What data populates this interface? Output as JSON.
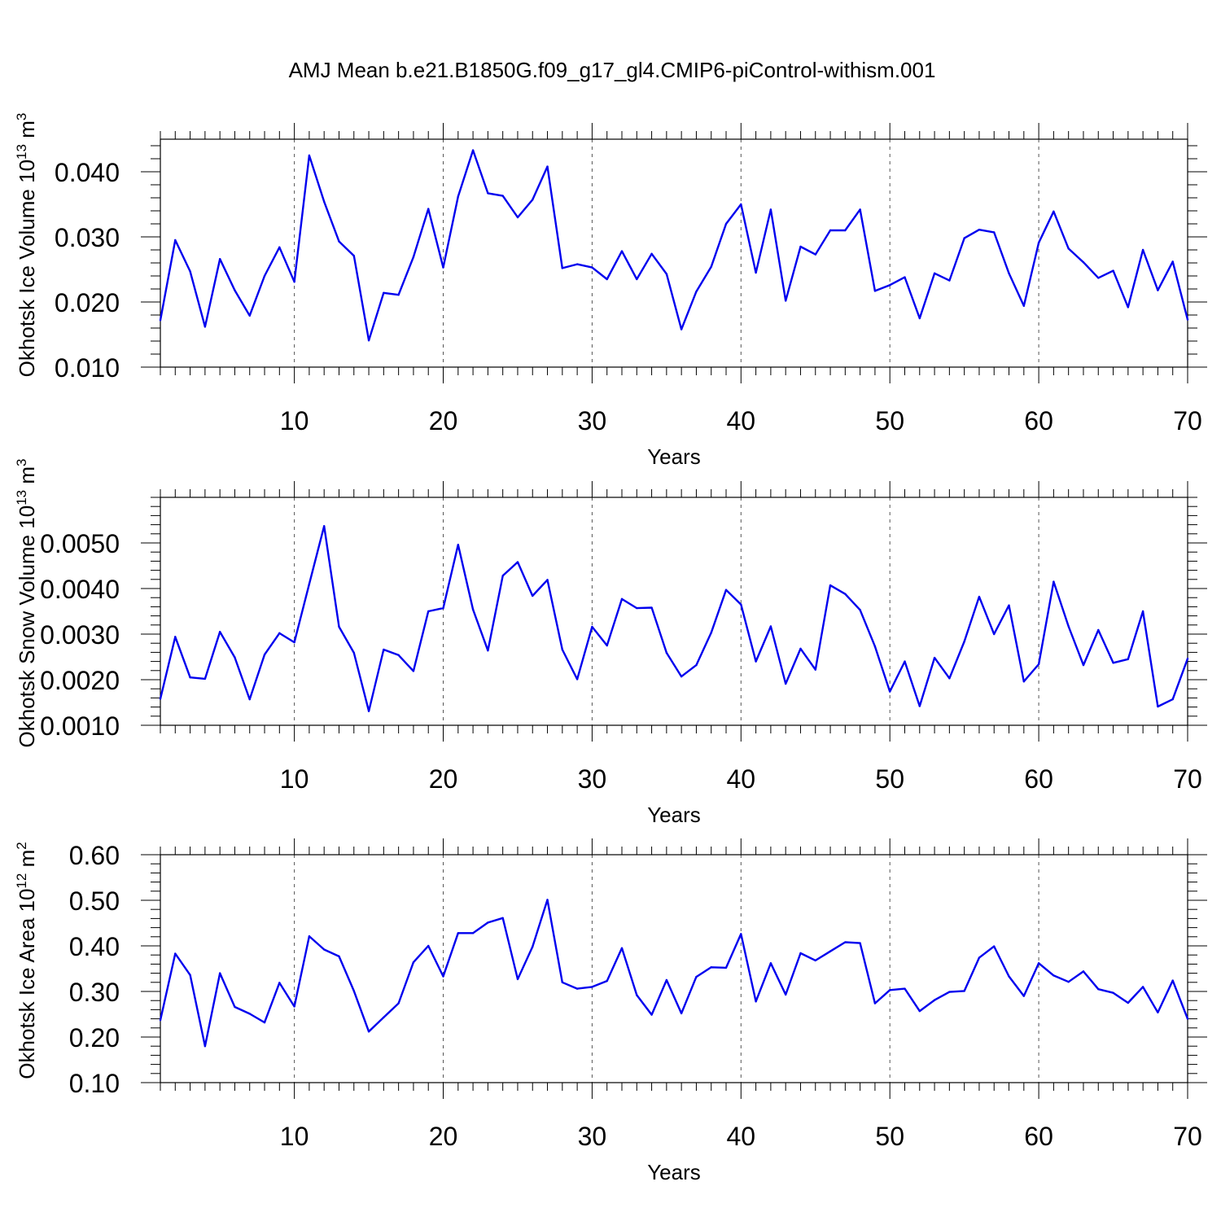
{
  "figure": {
    "title": "AMJ Mean b.e21.B1850G.f09_g17_gl4.CMIP6-piControl-withism.001"
  },
  "colors": {
    "line": "#0000ee",
    "axis": "#000000",
    "grid": "#555555"
  },
  "chart_data": [
    {
      "type": "line",
      "ylabel": {
        "main": "Okhotsk Ice Volume 10",
        "sup": "13",
        "unit": " m",
        "unitsup": "3"
      },
      "xlabel": "Years",
      "xlim": [
        1,
        70
      ],
      "ylim": [
        0.01,
        0.045
      ],
      "yticks": [
        0.01,
        0.02,
        0.03,
        0.04
      ],
      "ytick_labels": [
        "0.010",
        "0.020",
        "0.030",
        "0.040"
      ],
      "xticks": [
        10,
        20,
        30,
        40,
        50,
        60,
        70
      ],
      "xtick_labels": [
        "10",
        "20",
        "30",
        "40",
        "50",
        "60",
        "70"
      ],
      "grid": "vertical-dashed",
      "series": [
        {
          "name": "Okhotsk Ice Volume",
          "x": [
            1,
            2,
            3,
            4,
            5,
            6,
            7,
            8,
            9,
            10,
            11,
            12,
            13,
            14,
            15,
            16,
            17,
            18,
            19,
            20,
            21,
            22,
            23,
            24,
            25,
            26,
            27,
            28,
            29,
            30,
            31,
            32,
            33,
            34,
            35,
            36,
            37,
            38,
            39,
            40,
            41,
            42,
            43,
            44,
            45,
            46,
            47,
            48,
            49,
            50,
            51,
            52,
            53,
            54,
            55,
            56,
            57,
            58,
            59,
            60,
            61,
            62,
            63,
            64,
            65,
            66,
            67,
            68,
            69,
            70
          ],
          "values": [
            0.0172,
            0.0295,
            0.0247,
            0.0162,
            0.0266,
            0.0218,
            0.0179,
            0.024,
            0.0284,
            0.0231,
            0.0425,
            0.0354,
            0.0293,
            0.0271,
            0.0141,
            0.0214,
            0.0211,
            0.0269,
            0.0343,
            0.0253,
            0.0362,
            0.0433,
            0.0367,
            0.0363,
            0.033,
            0.0357,
            0.0408,
            0.0252,
            0.0258,
            0.0253,
            0.0235,
            0.0278,
            0.0235,
            0.0274,
            0.0243,
            0.0158,
            0.0216,
            0.0254,
            0.032,
            0.035,
            0.0245,
            0.0342,
            0.0202,
            0.0285,
            0.0273,
            0.031,
            0.031,
            0.0342,
            0.0217,
            0.0226,
            0.0238,
            0.0175,
            0.0244,
            0.0233,
            0.0298,
            0.0311,
            0.0307,
            0.0244,
            0.0194,
            0.0291,
            0.0339,
            0.0282,
            0.0261,
            0.0237,
            0.0248,
            0.0192,
            0.028,
            0.0218,
            0.0262,
            0.0173
          ]
        }
      ]
    },
    {
      "type": "line",
      "ylabel": {
        "main": "Okhotsk Snow Volume 10",
        "sup": "13",
        "unit": " m",
        "unitsup": "3"
      },
      "xlabel": "Years",
      "xlim": [
        1,
        70
      ],
      "ylim": [
        0.001,
        0.006
      ],
      "yticks": [
        0.001,
        0.002,
        0.003,
        0.004,
        0.005
      ],
      "ytick_labels": [
        "0.0010",
        "0.0020",
        "0.0030",
        "0.0040",
        "0.0050"
      ],
      "xticks": [
        10,
        20,
        30,
        40,
        50,
        60,
        70
      ],
      "xtick_labels": [
        "10",
        "20",
        "30",
        "40",
        "50",
        "60",
        "70"
      ],
      "grid": "vertical-dashed",
      "series": [
        {
          "name": "Okhotsk Snow Volume",
          "x": [
            1,
            2,
            3,
            4,
            5,
            6,
            7,
            8,
            9,
            10,
            11,
            12,
            13,
            14,
            15,
            16,
            17,
            18,
            19,
            20,
            21,
            22,
            23,
            24,
            25,
            26,
            27,
            28,
            29,
            30,
            31,
            32,
            33,
            34,
            35,
            36,
            37,
            38,
            39,
            40,
            41,
            42,
            43,
            44,
            45,
            46,
            47,
            48,
            49,
            50,
            51,
            52,
            53,
            54,
            55,
            56,
            57,
            58,
            59,
            60,
            61,
            62,
            63,
            64,
            65,
            66,
            67,
            68,
            69,
            70
          ],
          "values": [
            0.00158,
            0.00294,
            0.00205,
            0.00202,
            0.00305,
            0.00249,
            0.00157,
            0.00255,
            0.00302,
            0.00282,
            0.0041,
            0.00537,
            0.00316,
            0.00259,
            0.00131,
            0.00266,
            0.00254,
            0.00219,
            0.0035,
            0.00357,
            0.00496,
            0.00354,
            0.00264,
            0.00428,
            0.00458,
            0.00384,
            0.00419,
            0.00266,
            0.00201,
            0.00316,
            0.00275,
            0.00377,
            0.00357,
            0.00358,
            0.00259,
            0.00207,
            0.00232,
            0.00303,
            0.00397,
            0.00365,
            0.0024,
            0.00317,
            0.00191,
            0.00268,
            0.00222,
            0.00407,
            0.00388,
            0.00353,
            0.00273,
            0.00174,
            0.0024,
            0.00142,
            0.00248,
            0.00203,
            0.00284,
            0.00382,
            0.003,
            0.00363,
            0.00196,
            0.00234,
            0.00415,
            0.00317,
            0.00232,
            0.00309,
            0.00237,
            0.00245,
            0.0035,
            0.00141,
            0.00157,
            0.00246
          ]
        }
      ]
    },
    {
      "type": "line",
      "ylabel": {
        "main": "Okhotsk Ice Area 10",
        "sup": "12",
        "unit": " m",
        "unitsup": "2"
      },
      "xlabel": "Years",
      "xlim": [
        1,
        70
      ],
      "ylim": [
        0.1,
        0.6
      ],
      "yticks": [
        0.1,
        0.2,
        0.3,
        0.4,
        0.5,
        0.6
      ],
      "ytick_labels": [
        "0.10",
        "0.20",
        "0.30",
        "0.40",
        "0.50",
        "0.60"
      ],
      "xticks": [
        10,
        20,
        30,
        40,
        50,
        60,
        70
      ],
      "xtick_labels": [
        "10",
        "20",
        "30",
        "40",
        "50",
        "60",
        "70"
      ],
      "grid": "vertical-dashed",
      "series": [
        {
          "name": "Okhotsk Ice Area",
          "x": [
            1,
            2,
            3,
            4,
            5,
            6,
            7,
            8,
            9,
            10,
            11,
            12,
            13,
            14,
            15,
            16,
            17,
            18,
            19,
            20,
            21,
            22,
            23,
            24,
            25,
            26,
            27,
            28,
            29,
            30,
            31,
            32,
            33,
            34,
            35,
            36,
            37,
            38,
            39,
            40,
            41,
            42,
            43,
            44,
            45,
            46,
            47,
            48,
            49,
            50,
            51,
            52,
            53,
            54,
            55,
            56,
            57,
            58,
            59,
            60,
            61,
            62,
            63,
            64,
            65,
            66,
            67,
            68,
            69,
            70
          ],
          "values": [
            0.237,
            0.383,
            0.336,
            0.18,
            0.34,
            0.266,
            0.251,
            0.232,
            0.319,
            0.267,
            0.421,
            0.392,
            0.377,
            0.301,
            0.212,
            0.243,
            0.274,
            0.364,
            0.4,
            0.333,
            0.428,
            0.428,
            0.451,
            0.461,
            0.327,
            0.398,
            0.501,
            0.32,
            0.306,
            0.31,
            0.323,
            0.395,
            0.292,
            0.249,
            0.325,
            0.252,
            0.332,
            0.353,
            0.352,
            0.426,
            0.278,
            0.362,
            0.293,
            0.384,
            0.368,
            0.388,
            0.408,
            0.406,
            0.274,
            0.303,
            0.306,
            0.257,
            0.281,
            0.299,
            0.301,
            0.374,
            0.399,
            0.333,
            0.29,
            0.362,
            0.335,
            0.321,
            0.344,
            0.305,
            0.297,
            0.275,
            0.31,
            0.254,
            0.324,
            0.24
          ]
        }
      ]
    }
  ]
}
